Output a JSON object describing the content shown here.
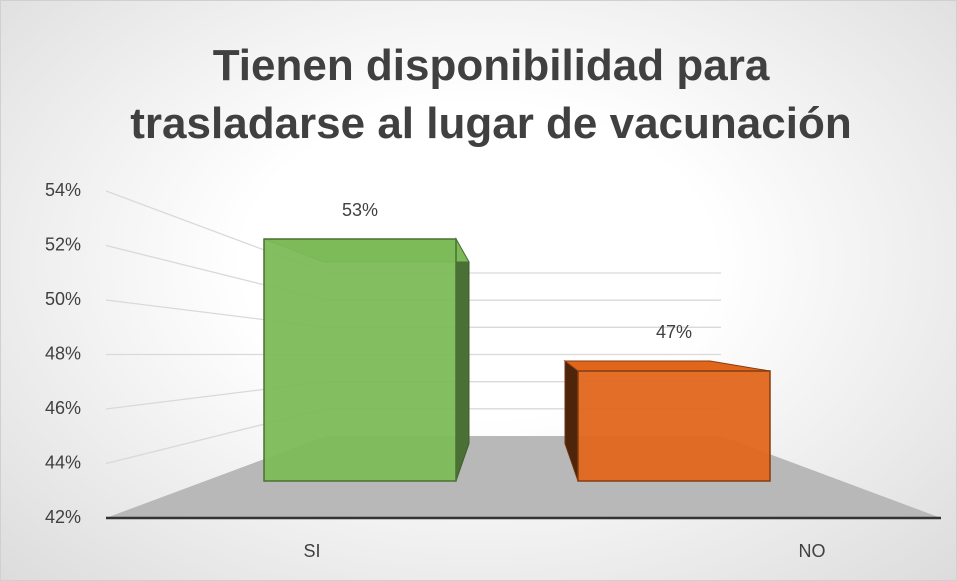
{
  "chart_data": {
    "type": "bar3d",
    "title": "Tienen disponibilidad para trasladarse al lugar de vacunación",
    "categories": [
      "SI",
      "NO"
    ],
    "values": [
      53,
      47
    ],
    "value_labels": [
      "53%",
      "47%"
    ],
    "colors": [
      "#7cba59",
      "#e0661c"
    ],
    "ylim": [
      42,
      54
    ],
    "yticks": [
      {
        "value": 42,
        "label": "42%"
      },
      {
        "value": 44,
        "label": "44%"
      },
      {
        "value": 46,
        "label": "46%"
      },
      {
        "value": 48,
        "label": "48%"
      },
      {
        "value": 50,
        "label": "50%"
      },
      {
        "value": 52,
        "label": "52%"
      },
      {
        "value": 54,
        "label": "54%"
      }
    ],
    "grid": true
  }
}
